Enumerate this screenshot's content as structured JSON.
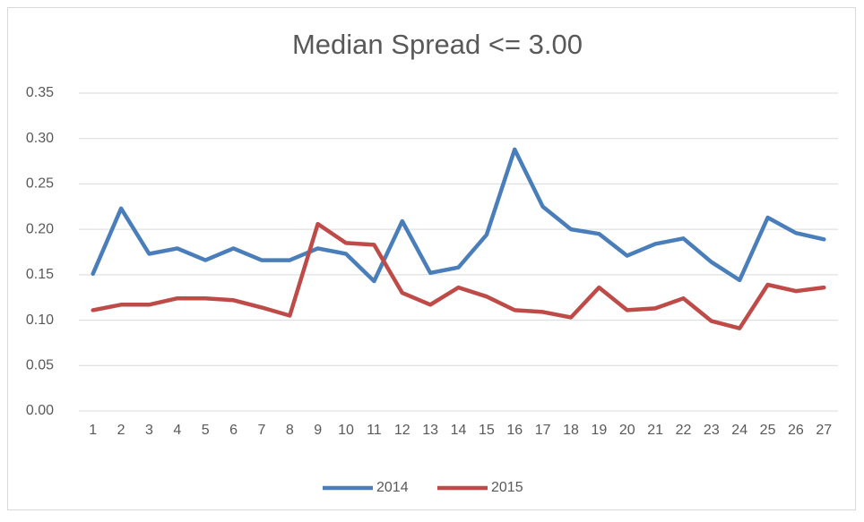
{
  "chart_data": {
    "type": "line",
    "title": "Median Spread <= 3.00",
    "categories": [
      "1",
      "2",
      "3",
      "4",
      "5",
      "6",
      "7",
      "8",
      "9",
      "10",
      "11",
      "12",
      "13",
      "14",
      "15",
      "16",
      "17",
      "18",
      "19",
      "20",
      "21",
      "22",
      "23",
      "24",
      "25",
      "26",
      "27"
    ],
    "series": [
      {
        "name": "2014",
        "color": "#4a7ebb",
        "values": [
          0.151,
          0.223,
          0.173,
          0.179,
          0.166,
          0.179,
          0.166,
          0.166,
          0.179,
          0.173,
          0.143,
          0.209,
          0.152,
          0.158,
          0.194,
          0.288,
          0.225,
          0.2,
          0.195,
          0.171,
          0.184,
          0.19,
          0.164,
          0.144,
          0.213,
          0.196,
          0.189
        ]
      },
      {
        "name": "2015",
        "color": "#be4b48",
        "values": [
          0.111,
          0.117,
          0.117,
          0.124,
          0.124,
          0.122,
          0.114,
          0.105,
          0.206,
          0.185,
          0.183,
          0.13,
          0.117,
          0.136,
          0.126,
          0.111,
          0.109,
          0.103,
          0.136,
          0.111,
          0.113,
          0.124,
          0.099,
          0.091,
          0.139,
          0.132,
          0.136
        ]
      }
    ],
    "ylim": [
      0,
      0.35
    ],
    "yticks": [
      {
        "value": 0,
        "label": "0.00"
      },
      {
        "value": 0.05,
        "label": "0.05"
      },
      {
        "value": 0.1,
        "label": "0.10"
      },
      {
        "value": 0.15,
        "label": "0.15"
      },
      {
        "value": 0.2,
        "label": "0.20"
      },
      {
        "value": 0.25,
        "label": "0.25"
      },
      {
        "value": 0.3,
        "label": "0.30"
      },
      {
        "value": 0.35,
        "label": "0.35"
      }
    ],
    "grid": true,
    "legend": "bottom"
  }
}
